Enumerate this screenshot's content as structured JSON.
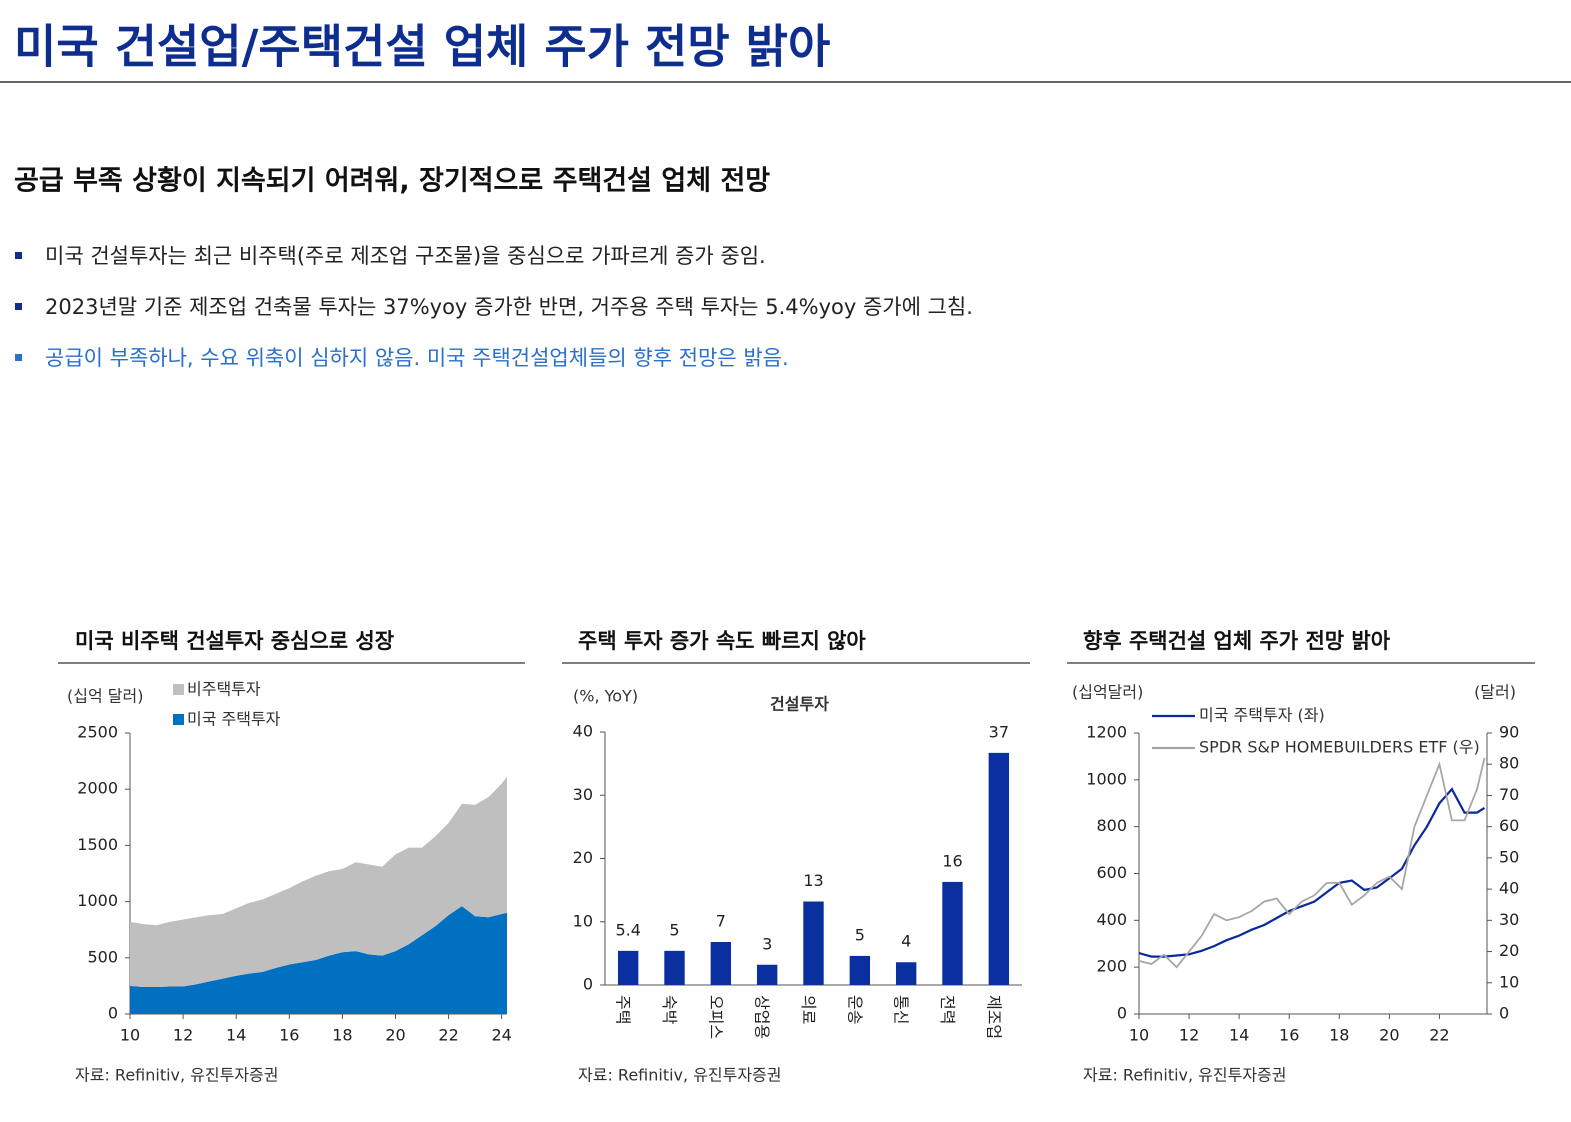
{
  "title": "미국 건설업/주택건설 업체 주가 전망 밝아",
  "subtitle": "공급 부족 상황이 지속되기 어려워, 장기적으로 주택건설 업체 전망",
  "bullets": [
    "미국 건설투자는 최근 비주택(주로 제조업 구조물)을 중심으로 가파르게 증가 중임.",
    "2023년말 기준 제조업 건축물 투자는 37%yoy 증가한 반면, 거주용 주택 투자는 5.4%yoy 증가에 그침.",
    "공급이 부족하나, 수요 위축이 심하지 않음. 미국 주택건설업체들의 향후 전망은 밝음."
  ],
  "chart_data": [
    {
      "type": "area",
      "stacked": true,
      "title": "미국 비주택 건설투자 중심으로 성장",
      "unit_label": "(십억 달러)",
      "x": [
        10,
        10.5,
        11,
        11.5,
        12,
        12.5,
        13,
        13.5,
        14,
        14.5,
        15,
        15.5,
        16,
        16.5,
        17,
        17.5,
        18,
        18.5,
        19,
        19.5,
        20,
        20.5,
        21,
        21.5,
        22,
        22.5,
        23,
        23.5,
        24,
        24.2
      ],
      "series": [
        {
          "name": "비주택투자",
          "color": "#bfbfbf",
          "values": [
            570,
            560,
            550,
            575,
            595,
            595,
            590,
            575,
            600,
            630,
            645,
            660,
            680,
            720,
            750,
            750,
            740,
            790,
            800,
            790,
            860,
            860,
            780,
            800,
            820,
            910,
            990,
            1070,
            1160,
            1210
          ]
        },
        {
          "name": "미국 주택투자",
          "color": "#0070c0",
          "values": [
            250,
            240,
            240,
            245,
            245,
            265,
            290,
            315,
            340,
            360,
            375,
            410,
            440,
            460,
            480,
            520,
            550,
            560,
            530,
            520,
            560,
            620,
            700,
            780,
            880,
            960,
            870,
            860,
            890,
            900
          ]
        }
      ],
      "xlim": [
        10,
        24.2
      ],
      "xticks": [
        10,
        12,
        14,
        16,
        18,
        20,
        22,
        24
      ],
      "ylim": [
        0,
        2500
      ],
      "yticks": [
        0,
        500,
        1000,
        1500,
        2000,
        2500
      ],
      "source": "자료: Refinitiv, 유진투자증권"
    },
    {
      "type": "bar",
      "title": "주택 투자 증가 속도 빠르지 않아",
      "unit_label": "(%, YoY)",
      "subtitle": "건설투자",
      "categories": [
        "주택",
        "숙박",
        "오피스",
        "상업용",
        "의료",
        "운송",
        "통신",
        "전력",
        "제조업"
      ],
      "values": [
        5.4,
        5.4,
        6.8,
        3.2,
        13.2,
        4.6,
        3.6,
        16.3,
        36.7
      ],
      "value_labels": [
        "5.4",
        "5",
        "7",
        "3",
        "13",
        "5",
        "4",
        "16",
        "37"
      ],
      "color": "#0a2f9e",
      "ylim": [
        0,
        40
      ],
      "yticks": [
        0,
        10,
        20,
        30,
        40
      ],
      "source": "자료: Refinitiv, 유진투자증권"
    },
    {
      "type": "line",
      "title": "향후 주택건설 업체 주가 전망 밝아",
      "unit_label": "(십억달러)",
      "y2_unit_label": "(달러)",
      "x": [
        10,
        10.5,
        11,
        11.5,
        12,
        12.5,
        13,
        13.5,
        14,
        14.5,
        15,
        15.5,
        16,
        16.5,
        17,
        17.5,
        18,
        18.5,
        19,
        19.5,
        20,
        20.5,
        21,
        21.5,
        22,
        22.5,
        23,
        23.5,
        23.8
      ],
      "series": [
        {
          "name": "미국 주택투자 (좌)",
          "color": "#0b2a9a",
          "values": [
            260,
            245,
            245,
            250,
            255,
            270,
            290,
            315,
            335,
            360,
            380,
            410,
            440,
            460,
            480,
            520,
            560,
            570,
            530,
            540,
            580,
            620,
            720,
            800,
            900,
            960,
            860,
            860,
            880
          ]
        },
        {
          "name": "SPDR S&P HOMEBUILDERS ETF (우)",
          "color": "#a6a6a6",
          "axis": "y2",
          "values": [
            17,
            16,
            19,
            15,
            20,
            25,
            32,
            30,
            31,
            33,
            36,
            37,
            32,
            36,
            38,
            42,
            42,
            35,
            38,
            42,
            44,
            40,
            60,
            70,
            80,
            62,
            62,
            72,
            82
          ]
        }
      ],
      "xlim": [
        10,
        23.9
      ],
      "xticks": [
        10,
        12,
        14,
        16,
        18,
        20,
        22
      ],
      "ylim": [
        0,
        1200
      ],
      "yticks": [
        0,
        200,
        400,
        600,
        800,
        1000,
        1200
      ],
      "y2lim": [
        0,
        90
      ],
      "y2ticks": [
        0,
        10,
        20,
        30,
        40,
        50,
        60,
        70,
        80,
        90
      ],
      "source": "자료: Refinitiv, 유진투자증권"
    }
  ]
}
